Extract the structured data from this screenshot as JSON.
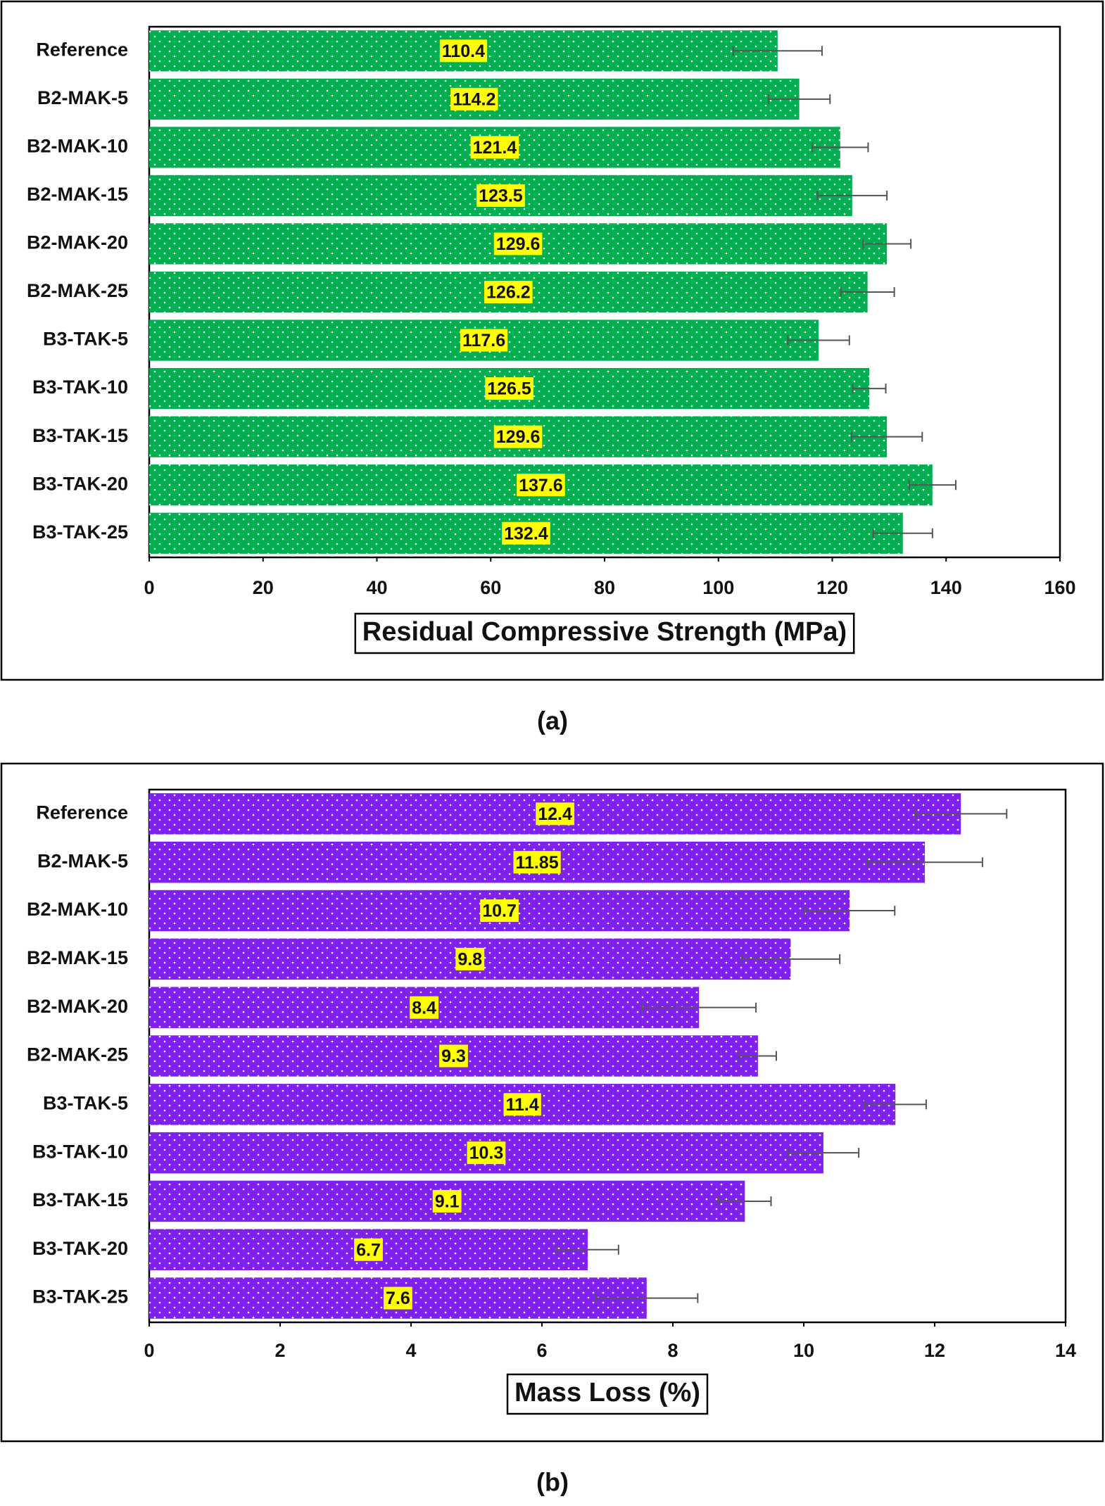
{
  "chart_data": [
    {
      "type": "bar",
      "orientation": "horizontal",
      "caption": "(a)",
      "x_label": "Residual Compressive Strength (MPa)",
      "categories": [
        "Reference",
        "B2-MAK-5",
        "B2-MAK-10",
        "B2-MAK-15",
        "B2-MAK-20",
        "B2-MAK-25",
        "B3-TAK-5",
        "B3-TAK-10",
        "B3-TAK-15",
        "B3-TAK-20",
        "B3-TAK-25"
      ],
      "values": [
        110.4,
        114.2,
        121.4,
        123.5,
        129.6,
        126.2,
        117.6,
        126.5,
        129.6,
        137.6,
        132.4
      ],
      "errors": [
        7.8,
        5.4,
        4.9,
        6.1,
        4.2,
        4.7,
        5.4,
        2.9,
        6.2,
        4.1,
        5.2
      ],
      "color": "#00b050",
      "xlim": [
        0,
        160
      ],
      "xticks": [
        0,
        20,
        40,
        60,
        80,
        100,
        120,
        140,
        160
      ]
    },
    {
      "type": "bar",
      "orientation": "horizontal",
      "caption": "(b)",
      "x_label": "Mass Loss (%)",
      "categories": [
        "Reference",
        "B2-MAK-5",
        "B2-MAK-10",
        "B2-MAK-15",
        "B2-MAK-20",
        "B2-MAK-25",
        "B3-TAK-5",
        "B3-TAK-10",
        "B3-TAK-15",
        "B3-TAK-20",
        "B3-TAK-25"
      ],
      "values": [
        12.4,
        11.85,
        10.7,
        9.8,
        8.4,
        9.3,
        11.4,
        10.3,
        9.1,
        6.7,
        7.6
      ],
      "errors": [
        0.7,
        0.88,
        0.69,
        0.75,
        0.87,
        0.28,
        0.47,
        0.54,
        0.4,
        0.47,
        0.78
      ],
      "color": "#8020f0",
      "xlim": [
        0,
        14
      ],
      "xticks": [
        0,
        2,
        4,
        6,
        8,
        10,
        12,
        14
      ]
    }
  ]
}
